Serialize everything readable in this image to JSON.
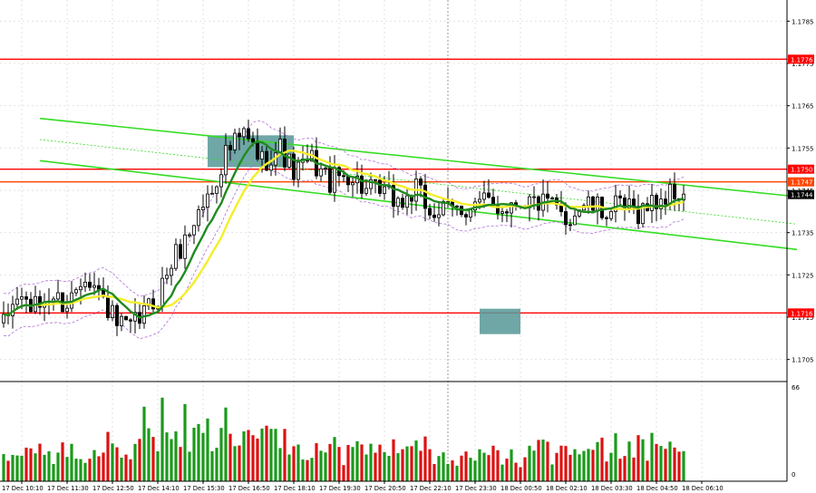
{
  "chart_data": {
    "type": "candlestick",
    "ylim": [
      1.17,
      1.179
    ],
    "price_ticks": [
      "1.1785",
      "1.1775",
      "1.1765",
      "1.1755",
      "1.1745",
      "1.1735",
      "1.1725",
      "1.1715",
      "1.1705"
    ],
    "time_labels": [
      "17 Dec 10:10",
      "17 Dec 11:30",
      "17 Dec 12:50",
      "17 Dec 14:10",
      "17 Dec 15:30",
      "17 Dec 16:50",
      "17 Dec 18:10",
      "17 Dec 19:30",
      "17 Dec 20:50",
      "17 Dec 22:10",
      "17 Dec 23:30",
      "18 Dec 00:50",
      "18 Dec 02:10",
      "18 Dec 03:30",
      "18 Dec 04:50",
      "18 Dec 06:10"
    ],
    "horizontal_levels": [
      {
        "label": "1.1776",
        "value": 1.1776,
        "color": "#ff0000"
      },
      {
        "label": "1.1750",
        "value": 1.175,
        "color": "#ff0000"
      },
      {
        "label": "1.1747",
        "value": 1.1747,
        "color": "#ff4500"
      },
      {
        "label": "1.1716",
        "value": 1.1716,
        "color": "#ff0000"
      }
    ],
    "current_price": {
      "label": "1.1744",
      "value": 1.1744
    },
    "channel": {
      "upper": [
        [
          0,
          1.1762
        ],
        [
          175,
          1.17435
        ]
      ],
      "lower": [
        [
          0,
          1.1752
        ],
        [
          175,
          1.1731
        ]
      ],
      "mid": [
        [
          0,
          1.1757
        ],
        [
          175,
          1.1737
        ]
      ]
    },
    "highlight_zones": [
      {
        "x0": 105,
        "x1": 114,
        "y0": 1.1711,
        "y1": 1.1717
      },
      {
        "x0": 45,
        "x1": 64,
        "y0": 1.17505,
        "y1": 1.1758
      }
    ],
    "keypoints": [
      [
        0,
        1.1713
      ],
      [
        3,
        1.172
      ],
      [
        7,
        1.1717
      ],
      [
        10,
        1.172
      ],
      [
        14,
        1.1718
      ],
      [
        18,
        1.1726
      ],
      [
        22,
        1.1719
      ],
      [
        25,
        1.1713
      ],
      [
        28,
        1.1712
      ],
      [
        31,
        1.1716
      ],
      [
        34,
        1.172
      ],
      [
        37,
        1.1728
      ],
      [
        40,
        1.1733
      ],
      [
        43,
        1.174
      ],
      [
        46,
        1.1745
      ],
      [
        49,
        1.1754
      ],
      [
        53,
        1.1758
      ],
      [
        57,
        1.1752
      ],
      [
        61,
        1.1755
      ],
      [
        64,
        1.1749
      ],
      [
        68,
        1.1752
      ],
      [
        72,
        1.1747
      ],
      [
        76,
        1.1749
      ],
      [
        80,
        1.1745
      ],
      [
        84,
        1.1744
      ],
      [
        88,
        1.1742
      ],
      [
        91,
        1.1745
      ],
      [
        94,
        1.174
      ],
      [
        98,
        1.174
      ],
      [
        102,
        1.1741
      ],
      [
        106,
        1.1742
      ],
      [
        110,
        1.1741
      ],
      [
        114,
        1.1743
      ],
      [
        118,
        1.1742
      ],
      [
        121,
        1.1741
      ],
      [
        124,
        1.1738
      ],
      [
        128,
        1.1742
      ],
      [
        132,
        1.174
      ],
      [
        136,
        1.1741
      ],
      [
        140,
        1.174
      ],
      [
        143,
        1.1742
      ],
      [
        147,
        1.1744
      ],
      [
        150,
        1.1744
      ]
    ],
    "volume_max": 66,
    "volume_tick": "66",
    "volume_zero": "0"
  }
}
